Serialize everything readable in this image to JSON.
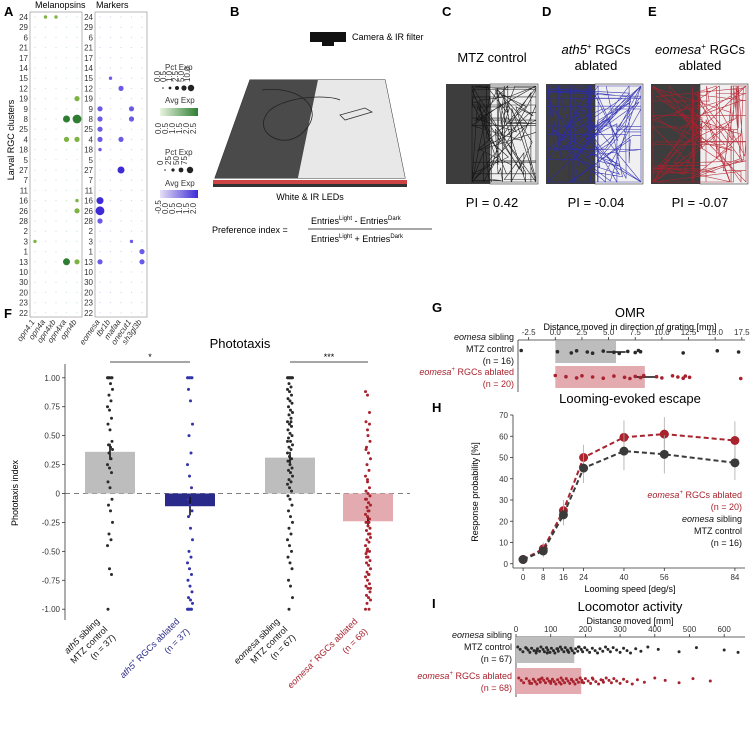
{
  "panel_letters": [
    "A",
    "B",
    "C",
    "D",
    "E",
    "F",
    "G",
    "H",
    "I"
  ],
  "colors": {
    "grey_bar": "#bdbdbd",
    "black_dot": "#2a2a2a",
    "ath5_bar": "#2a2a8a",
    "ath5_dot": "#3333aa",
    "eomesa_bar": "#e3aab0",
    "eomesa_dot": "#a8232e",
    "green": "#2e7d32",
    "purple": "#3d2bd6",
    "dark_arena": "#3d3d3d",
    "light_arena": "#f0f0f0"
  },
  "panelA": {
    "ylabel": "Larval RGC clusters",
    "headers": [
      "Melanopsins",
      "Markers"
    ],
    "clusters": [
      "24",
      "29",
      "6",
      "21",
      "17",
      "14",
      "15",
      "12",
      "19",
      "9",
      "8",
      "25",
      "4",
      "18",
      "5",
      "27",
      "7",
      "11",
      "16",
      "26",
      "28",
      "2",
      "3",
      "1",
      "13",
      "10",
      "30",
      "20",
      "23",
      "22"
    ],
    "genes_mel": [
      "opn4.1",
      "opn4a",
      "opn4xb",
      "opn4xa",
      "opn4b"
    ],
    "genes_mark": [
      "eomesa",
      "tbr1b",
      "mafaa",
      "onecut1",
      "sh3gl3b"
    ],
    "mel_dots": [
      {
        "c": "24",
        "g": 1,
        "s": 1
      },
      {
        "c": "24",
        "g": 2,
        "s": 1
      },
      {
        "c": "8",
        "g": 3,
        "s": 3
      },
      {
        "c": "8",
        "g": 4,
        "s": 4
      },
      {
        "c": "4",
        "g": 3,
        "s": 2
      },
      {
        "c": "4",
        "g": 4,
        "s": 2
      },
      {
        "c": "19",
        "g": 4,
        "s": 2
      },
      {
        "c": "26",
        "g": 4,
        "s": 2
      },
      {
        "c": "13",
        "g": 3,
        "s": 3
      },
      {
        "c": "13",
        "g": 4,
        "s": 2
      },
      {
        "c": "16",
        "g": 4,
        "s": 1
      },
      {
        "c": "3",
        "g": 0,
        "s": 1
      }
    ],
    "mark_dots": [
      {
        "c": "9",
        "g": 0,
        "s": 2
      },
      {
        "c": "8",
        "g": 0,
        "s": 2
      },
      {
        "c": "25",
        "g": 0,
        "s": 2
      },
      {
        "c": "4",
        "g": 0,
        "s": 2
      },
      {
        "c": "18",
        "g": 0,
        "s": 1
      },
      {
        "c": "16",
        "g": 0,
        "s": 3
      },
      {
        "c": "26",
        "g": 0,
        "s": 4
      },
      {
        "c": "28",
        "g": 0,
        "s": 2
      },
      {
        "c": "13",
        "g": 0,
        "s": 2
      },
      {
        "c": "12",
        "g": 2,
        "s": 2
      },
      {
        "c": "27",
        "g": 2,
        "s": 3
      },
      {
        "c": "9",
        "g": 3,
        "s": 2
      },
      {
        "c": "8",
        "g": 3,
        "s": 2
      },
      {
        "c": "4",
        "g": 2,
        "s": 2
      },
      {
        "c": "1",
        "g": 4,
        "s": 2
      },
      {
        "c": "13",
        "g": 4,
        "s": 2
      },
      {
        "c": "3",
        "g": 3,
        "s": 1
      },
      {
        "c": "15",
        "g": 1,
        "s": 1
      }
    ],
    "legend1": {
      "pct_title": "Pct Exp",
      "pct_ticks": [
        "0.0",
        "0.5",
        "1.0",
        "2.5",
        "5.0",
        "10.0"
      ],
      "avg_title": "Avg Exp",
      "avg_ticks": [
        "0.0",
        "0.5",
        "1.0",
        "1.5",
        "2.0",
        "2.5"
      ]
    },
    "legend2": {
      "pct_title": "Pct Exp",
      "pct_ticks": [
        "0",
        "25",
        "50",
        "75"
      ],
      "avg_title": "Avg Exp",
      "avg_ticks": [
        "-0.5",
        "0.0",
        "0.5",
        "1.0",
        "1.5",
        "2.0"
      ]
    }
  },
  "panelB": {
    "camera_label": "Camera\n& IR filter",
    "led_label": "White & IR LEDs",
    "pi_label": "Preference index =",
    "pi_num": "Entries",
    "pi_num_sup1": "Light",
    "pi_num_mid": " - Entries",
    "pi_num_sup2": "Dark",
    "pi_den": "Entries",
    "pi_den_sup1": "Light",
    "pi_den_mid": " + Entries",
    "pi_den_sup2": "Dark"
  },
  "panelC": {
    "title": "MTZ control",
    "pi": "PI = 0.42"
  },
  "panelD": {
    "title_italic": "ath5",
    "title_sup": "+",
    "title_rest": " RGCs",
    "title_line2": "ablated",
    "pi": "PI = -0.04"
  },
  "panelE": {
    "title_italic": "eomesa",
    "title_sup": "+",
    "title_rest": " RGCs",
    "title_line2": "ablated",
    "pi": "PI = -0.07"
  },
  "chart_data": [
    {
      "panel": "F",
      "type": "bar",
      "title": "Phototaxis",
      "ylabel": "Phototaxis index",
      "ylim": [
        -1.05,
        1.05
      ],
      "yticks": [
        "1.00",
        "0.75",
        "0.50",
        "0.25",
        "0",
        "-0.25",
        "-0.50",
        "-0.75",
        "-1.00"
      ],
      "categories": [
        {
          "italic": "ath5",
          "line1": " sibling",
          "line2": "MTZ control",
          "line3": "(n = 37)"
        },
        {
          "italic": "ath5",
          "sup": "+",
          "line1": " RGCs ablated",
          "line3": "(n = 37)"
        },
        {
          "italic": "eomesa",
          "line1": " sibling",
          "line2": "MTZ control",
          "line3": "(n = 67)"
        },
        {
          "italic": "eomesa",
          "sup": "+",
          "line1": " RGCs ablated",
          "line3": "(n = 68)"
        }
      ],
      "means": [
        0.36,
        -0.11,
        0.31,
        -0.24
      ],
      "sem": [
        0.07,
        0.08,
        0.05,
        0.05
      ],
      "significance": [
        {
          "from": 0,
          "to": 1,
          "label": "*"
        },
        {
          "from": 2,
          "to": 3,
          "label": "***"
        }
      ],
      "points": [
        [
          1,
          1,
          1,
          1,
          1,
          1,
          1,
          0.95,
          0.9,
          0.85,
          0.8,
          0.75,
          0.72,
          0.65,
          0.6,
          0.55,
          0.45,
          0.42,
          0.4,
          0.38,
          0.35,
          0.3,
          0.25,
          0.22,
          0.18,
          0.1,
          0.05,
          -0.05,
          -0.1,
          -0.15,
          -0.25,
          -0.35,
          -0.4,
          -0.45,
          -0.65,
          -0.7,
          -1
        ],
        [
          1,
          1,
          1,
          1,
          1,
          1,
          0.9,
          0.8,
          0.6,
          0.5,
          0.35,
          0.25,
          0.15,
          0.05,
          -0.05,
          -0.1,
          -0.15,
          -0.2,
          -0.3,
          -0.4,
          -0.5,
          -0.55,
          -0.6,
          -0.65,
          -0.7,
          -0.75,
          -0.8,
          -0.85,
          -0.9,
          -0.92,
          -0.95,
          -1,
          -1,
          -1,
          -1,
          -1,
          -1
        ],
        [
          1,
          1,
          1,
          1,
          1,
          1,
          1,
          1,
          1,
          0.95,
          0.92,
          0.9,
          0.88,
          0.85,
          0.82,
          0.8,
          0.78,
          0.75,
          0.72,
          0.7,
          0.68,
          0.65,
          0.62,
          0.6,
          0.58,
          0.55,
          0.52,
          0.5,
          0.48,
          0.45,
          0.42,
          0.4,
          0.38,
          0.35,
          0.32,
          0.3,
          0.28,
          0.25,
          0.22,
          0.2,
          0.18,
          0.15,
          0.12,
          0.1,
          0.08,
          0.05,
          0.02,
          -0.02,
          -0.05,
          -0.1,
          -0.15,
          -0.2,
          -0.25,
          -0.3,
          -0.35,
          -0.4,
          -0.45,
          -0.5,
          -0.55,
          -0.6,
          -0.65,
          -0.75,
          -0.8,
          -0.9,
          -1,
          0.62,
          0.45
        ],
        [
          0.88,
          0.85,
          0.7,
          0.62,
          0.5,
          0.45,
          0.4,
          0.35,
          0.3,
          0.25,
          0.2,
          0.15,
          0.1,
          0.05,
          0.02,
          0,
          -0.02,
          -0.05,
          -0.08,
          -0.1,
          -0.12,
          -0.15,
          -0.18,
          -0.2,
          -0.22,
          -0.25,
          -0.28,
          -0.3,
          -0.32,
          -0.35,
          -0.38,
          -0.4,
          -0.42,
          -0.45,
          -0.48,
          -0.5,
          -0.52,
          -0.55,
          -0.58,
          -0.6,
          -0.62,
          -0.65,
          -0.68,
          -0.7,
          -0.72,
          -0.75,
          -0.78,
          -0.8,
          -0.82,
          -0.85,
          -0.88,
          -0.9,
          -0.92,
          -0.95,
          -1,
          -1,
          0.55,
          0.6,
          0.38,
          -0.15,
          -0.35,
          -0.55,
          -0.7,
          -0.82,
          -0.5,
          -0.25,
          -0.05,
          0.12
        ]
      ]
    },
    {
      "panel": "G",
      "type": "bar",
      "title": "OMR",
      "xlabel": "Distance moved in direction of grating [mm]",
      "xlim": [
        -3.5,
        17.8
      ],
      "xticks": [
        "-2.5",
        "0.0",
        "2.5",
        "5.0",
        "7.5",
        "10.0",
        "12.5",
        "15.0",
        "17.5"
      ],
      "categories": [
        {
          "italic": "eomesa",
          "line1": " sibling",
          "line2": "MTZ control",
          "line3": "(n = 16)"
        },
        {
          "italic": "eomesa",
          "sup": "+",
          "line1": " RGCs ablated",
          "line3": "(n = 20)"
        }
      ],
      "means": [
        5.7,
        8.4
      ],
      "sem": [
        0.9,
        1.0
      ],
      "points": [
        [
          -3.2,
          0.2,
          1.5,
          2.0,
          3.0,
          3.5,
          4.5,
          5.5,
          6.0,
          6.8,
          7.5,
          7.8,
          8.0,
          12.0,
          15.2,
          17.2
        ],
        [
          0.0,
          1.0,
          2.0,
          2.5,
          3.5,
          4.5,
          5.5,
          6.5,
          7.0,
          7.5,
          8.0,
          8.3,
          9.5,
          10.0,
          11.0,
          11.5,
          12.0,
          12.2,
          12.6,
          17.4
        ]
      ]
    },
    {
      "panel": "H",
      "type": "line",
      "title": "Looming-evoked escape",
      "xlabel": "Looming speed [deg/s]",
      "ylabel": "Response probability [%]",
      "x": [
        0,
        8,
        16,
        24,
        40,
        56,
        84
      ],
      "xlim": [
        -4,
        88
      ],
      "ylim": [
        -2,
        70
      ],
      "yticks": [
        "0",
        "10",
        "20",
        "30",
        "40",
        "50",
        "60",
        "70"
      ],
      "series": [
        {
          "name": "eomesa+ RGCs ablated (n = 20)",
          "values": [
            2,
            7,
            25,
            50,
            59.5,
            61,
            58
          ],
          "err": [
            1,
            3,
            5,
            6,
            8,
            8,
            9
          ]
        },
        {
          "name": "eomesa sibling MTZ control (n = 16)",
          "values": [
            2,
            6,
            23,
            45,
            53,
            51.5,
            47.5
          ],
          "err": [
            1,
            3,
            5,
            7,
            9,
            9,
            8
          ]
        }
      ],
      "legend": [
        {
          "italic": "eomesa",
          "sup": "+",
          "rest": " RGCs ablated",
          "n": "(n = 20)"
        },
        {
          "italic": "eomesa",
          "rest": " sibling",
          "line2": "MTZ control",
          "n": "(n = 16)"
        }
      ]
    },
    {
      "panel": "I",
      "type": "bar",
      "title": "Locomotor activity",
      "xlabel": "Distance moved [mm]",
      "xlim": [
        0,
        660
      ],
      "xticks": [
        "0",
        "100",
        "200",
        "300",
        "400",
        "500",
        "600"
      ],
      "categories": [
        {
          "italic": "eomesa",
          "line1": " sibling",
          "line2": "MTZ control",
          "line3": "(n = 67)"
        },
        {
          "italic": "eomesa",
          "sup": "+",
          "line1": " RGCs ablated",
          "line3": "(n = 68)"
        }
      ],
      "means": [
        168,
        188
      ],
      "points": [
        [
          5,
          12,
          20,
          28,
          35,
          40,
          45,
          52,
          58,
          62,
          68,
          72,
          78,
          82,
          88,
          92,
          98,
          102,
          108,
          112,
          118,
          122,
          128,
          132,
          138,
          142,
          148,
          152,
          158,
          162,
          168,
          172,
          178,
          182,
          188,
          192,
          198,
          205,
          212,
          220,
          228,
          235,
          242,
          250,
          258,
          265,
          272,
          280,
          290,
          300,
          310,
          320,
          330,
          345,
          360,
          380,
          410,
          470,
          520,
          600,
          640,
          30,
          60,
          90,
          120,
          150,
          180
        ],
        [
          8,
          15,
          22,
          30,
          38,
          45,
          50,
          55,
          60,
          65,
          70,
          75,
          80,
          85,
          90,
          95,
          100,
          105,
          110,
          115,
          120,
          125,
          130,
          135,
          140,
          145,
          150,
          155,
          160,
          165,
          170,
          175,
          180,
          185,
          190,
          195,
          200,
          208,
          215,
          222,
          230,
          238,
          245,
          252,
          260,
          268,
          275,
          282,
          290,
          300,
          310,
          320,
          335,
          350,
          370,
          400,
          430,
          470,
          510,
          560,
          40,
          70,
          100,
          130,
          160,
          190,
          220,
          250
        ]
      ]
    }
  ]
}
